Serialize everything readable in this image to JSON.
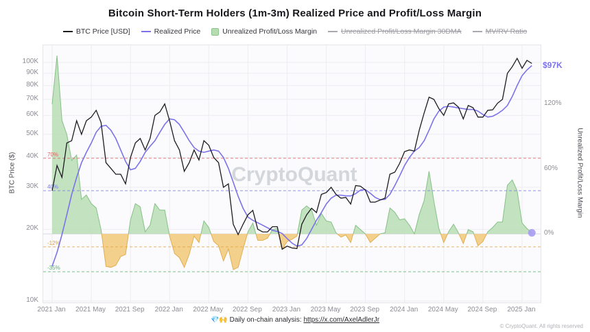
{
  "header": {
    "title": "Bitcoin Short-Term Holders (1m-3m)  Realized Price and Profit/Loss Margin"
  },
  "legend": {
    "items": [
      {
        "label": "BTC Price [USD]",
        "marker": "line",
        "color": "#1b1b1f",
        "disabled": false
      },
      {
        "label": "Realized Price",
        "marker": "line",
        "color": "#7b72e9",
        "disabled": false
      },
      {
        "label": "Unrealized Profit/Loss Margin",
        "marker": "area",
        "color": "#b7dcb2",
        "border": "#8cc48c",
        "disabled": false
      },
      {
        "label": "Unrealized Profit/Loss Margin 30DMA",
        "marker": "line",
        "color": "#a8a8b0",
        "disabled": true
      },
      {
        "label": "MV/RV Ratio",
        "marker": "line",
        "color": "#a8a8b0",
        "disabled": true
      }
    ]
  },
  "chart_data": {
    "type": "line+area",
    "title": "Bitcoin Short-Term Holders (1m-3m)  Realized Price and Profit/Loss Margin",
    "watermark": "CryptoQuant",
    "x_unit": "months since 2021 Jan",
    "t_start": 0,
    "t_step": 0.5,
    "x_ticks": [
      {
        "t": 0,
        "label": "2021 Jan"
      },
      {
        "t": 4,
        "label": "2021 May"
      },
      {
        "t": 8,
        "label": "2021 Sep"
      },
      {
        "t": 12,
        "label": "2022 Jan"
      },
      {
        "t": 16,
        "label": "2022 May"
      },
      {
        "t": 20,
        "label": "2022 Sep"
      },
      {
        "t": 24,
        "label": "2023 Jan"
      },
      {
        "t": 28,
        "label": "2023 May"
      },
      {
        "t": 32,
        "label": "2023 Sep"
      },
      {
        "t": 36,
        "label": "2024 Jan"
      },
      {
        "t": 40,
        "label": "2024 May"
      },
      {
        "t": 44,
        "label": "2024 Sep"
      },
      {
        "t": 48,
        "label": "2025 Jan"
      }
    ],
    "price_axis": {
      "title": "BTC Price ($)",
      "scale": "log",
      "ticks": [
        {
          "v": 100,
          "label": "100K"
        },
        {
          "v": 90,
          "label": "90K"
        },
        {
          "v": 80,
          "label": "80K"
        },
        {
          "v": 70,
          "label": "70K"
        },
        {
          "v": 60,
          "label": "60K"
        },
        {
          "v": 50,
          "label": "50K"
        },
        {
          "v": 40,
          "label": "40K"
        },
        {
          "v": 30,
          "label": "30K"
        },
        {
          "v": 20,
          "label": "20K"
        },
        {
          "v": 10,
          "label": "10K"
        }
      ]
    },
    "margin_axis": {
      "title": "Unrealized Profit/Loss Margin",
      "scale": "linear",
      "ticks": [
        {
          "v": 120,
          "label": "120%"
        },
        {
          "v": 60,
          "label": "60%"
        },
        {
          "v": 0,
          "label": "0%"
        }
      ]
    },
    "reference_lines": [
      {
        "value": 70,
        "label": "70%",
        "color": "#e06060"
      },
      {
        "value": 40,
        "label": "40%",
        "color": "#7878e0"
      },
      {
        "value": -12,
        "label": "-12%",
        "color": "#e0a23c"
      },
      {
        "value": -35,
        "label": "-35%",
        "color": "#58b368"
      }
    ],
    "current_realized_price_label": "$97K",
    "current_margin_marker": {
      "t": 49,
      "value_pct": 1
    },
    "series": {
      "btc_price": {
        "name": "BTC Price [USD]",
        "color": "#1b1b1f",
        "values_usd_k": [
          29,
          37,
          33,
          46,
          47,
          57,
          50,
          57,
          59,
          63,
          56,
          38,
          36,
          34,
          34,
          31,
          40,
          46,
          48,
          43,
          48,
          60,
          62,
          67,
          57,
          47,
          43,
          35,
          38,
          43,
          39,
          47,
          45,
          40,
          38,
          30,
          31,
          21,
          19,
          21,
          23,
          24,
          20,
          19.5,
          19.5,
          20.5,
          20.5,
          16.5,
          17,
          16.7,
          16.6,
          21,
          23,
          24.5,
          23.5,
          28,
          28.5,
          30,
          28,
          27,
          27.2,
          25.5,
          30.5,
          30.3,
          29.2,
          26,
          26,
          26.5,
          27,
          34,
          34.7,
          37.8,
          42.3,
          43,
          42.5,
          52,
          61.5,
          71.5,
          70,
          64,
          60,
          67,
          67.7,
          65,
          58,
          66,
          64.6,
          59,
          59,
          63,
          63.3,
          67.5,
          70,
          90,
          96,
          104,
          94.5,
          102,
          99
        ]
      },
      "realized_price": {
        "name": "Realized Price",
        "color": "#7b72e9",
        "values_usd_k": [
          14,
          16,
          19,
          23,
          28,
          33,
          38,
          42,
          46,
          51,
          54,
          54.5,
          52,
          48,
          43,
          38.5,
          35.5,
          36,
          38.5,
          42,
          44.5,
          47,
          51,
          55,
          58,
          57.5,
          55,
          51,
          47,
          44,
          42.5,
          42,
          42.5,
          43,
          42.5,
          40,
          36,
          31.5,
          27.5,
          24.5,
          22.5,
          21.8,
          21.3,
          20.8,
          20.3,
          19.8,
          19.6,
          19.2,
          18.3,
          17.5,
          17,
          17.2,
          18.3,
          20,
          21.8,
          23.5,
          25.5,
          27,
          27.8,
          27.8,
          27.6,
          27.6,
          28.2,
          29.2,
          29.3,
          28.3,
          27.2,
          26.6,
          26.7,
          28,
          30.5,
          33.5,
          37,
          40,
          42.5,
          44,
          47,
          52,
          58,
          62.5,
          65,
          65.5,
          65,
          64.5,
          64,
          63.5,
          63.5,
          62.5,
          60.5,
          59,
          59.5,
          61,
          63,
          66,
          72,
          80,
          88,
          93,
          97
        ]
      },
      "margin_pct": {
        "name": "Unrealized Profit/Loss Margin",
        "positive_fill": "#b5dcb0",
        "positive_stroke": "#86c186",
        "negative_fill": "#f2c879",
        "negative_stroke": "#dfae52",
        "values_pct": [
          120,
          165,
          105,
          92,
          68,
          73,
          32,
          36,
          28,
          24,
          4,
          -30,
          -31,
          -29,
          -21,
          -19,
          13,
          28,
          25,
          2,
          8,
          28,
          22,
          22,
          -2,
          -18,
          -22,
          -31,
          -19,
          -2,
          -8,
          12,
          6,
          -7,
          -11,
          -25,
          -14,
          -33,
          -31,
          -14,
          2,
          10,
          -6,
          -6,
          -4,
          4,
          5,
          -14,
          -7,
          -5,
          -2,
          22,
          26,
          22,
          8,
          19,
          12,
          11,
          1,
          -3,
          -1,
          -8,
          8,
          4,
          0,
          -8,
          -4,
          0,
          1,
          24,
          20,
          13,
          14,
          8,
          0,
          18,
          31,
          58,
          30,
          5,
          -8,
          2,
          9,
          1,
          -9,
          4,
          2,
          -11,
          -7,
          2,
          6,
          11,
          11,
          45,
          50,
          40,
          10,
          5,
          1
        ]
      }
    }
  },
  "footer": {
    "note_prefix": "💎🙌 Daily on-chain analysis: ",
    "link": "https://x.com/AxelAdlerJr",
    "copyright": "© CryptoQuant. All rights reserved"
  }
}
